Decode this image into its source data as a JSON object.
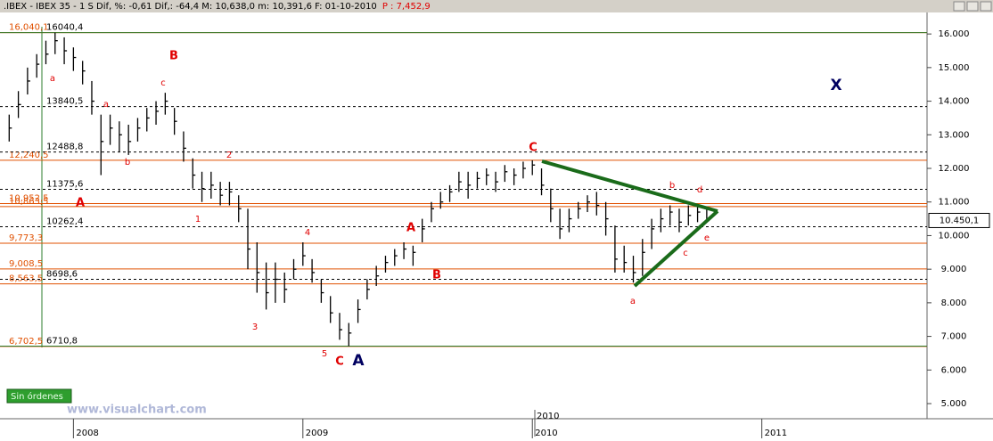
{
  "chart_data": {
    "type": "ohlc",
    "title": ".IBEX - IBEX 35 - 1 S Dif, %: -0,61 Dif,: -64,4 M: 10,638,0 m: 10,391,6 F: 01-10-2010",
    "title_price": "P : 7,452,9",
    "xlim": [
      2007.68,
      2011.72
    ],
    "ylim": [
      4550,
      16640
    ],
    "xticks": [
      2008,
      2009,
      2010,
      2011
    ],
    "yticks": [
      {
        "value": 5000,
        "label": "5.000"
      },
      {
        "value": 6000,
        "label": "6.000"
      },
      {
        "value": 7000,
        "label": "7.000"
      },
      {
        "value": 8000,
        "label": "8.000"
      },
      {
        "value": 9000,
        "label": "9.000"
      },
      {
        "value": 10000,
        "label": "10.000"
      },
      {
        "value": 11000,
        "label": "11.000"
      },
      {
        "value": 12000,
        "label": "12.000"
      },
      {
        "value": 13000,
        "label": "13.000"
      },
      {
        "value": 14000,
        "label": "14.000"
      },
      {
        "value": 15000,
        "label": "15.000"
      },
      {
        "value": 16000,
        "label": "16.000"
      }
    ],
    "color": "#000000",
    "x": [
      2007.72,
      2007.76,
      2007.8,
      2007.84,
      2007.88,
      2007.92,
      2007.96,
      2008.0,
      2008.04,
      2008.08,
      2008.12,
      2008.16,
      2008.2,
      2008.24,
      2008.28,
      2008.32,
      2008.36,
      2008.4,
      2008.44,
      2008.48,
      2008.52,
      2008.56,
      2008.6,
      2008.64,
      2008.68,
      2008.72,
      2008.76,
      2008.8,
      2008.84,
      2008.88,
      2008.92,
      2008.96,
      2009.0,
      2009.04,
      2009.08,
      2009.12,
      2009.16,
      2009.2,
      2009.24,
      2009.28,
      2009.32,
      2009.36,
      2009.4,
      2009.44,
      2009.48,
      2009.52,
      2009.56,
      2009.6,
      2009.64,
      2009.68,
      2009.72,
      2009.76,
      2009.8,
      2009.84,
      2009.88,
      2009.92,
      2009.96,
      2010.0,
      2010.04,
      2010.08,
      2010.12,
      2010.16,
      2010.2,
      2010.24,
      2010.28,
      2010.32,
      2010.36,
      2010.4,
      2010.44,
      2010.48,
      2010.52,
      2010.56,
      2010.6,
      2010.64,
      2010.68,
      2010.72,
      2010.76
    ],
    "high": [
      13600,
      14300,
      15000,
      15400,
      15800,
      16040,
      15900,
      15600,
      15200,
      14600,
      13600,
      13600,
      13400,
      13300,
      13500,
      13800,
      14000,
      14250,
      13800,
      13100,
      12300,
      11900,
      11900,
      11600,
      11600,
      11200,
      10800,
      9800,
      9200,
      9200,
      8900,
      9300,
      9800,
      9300,
      8700,
      8200,
      7700,
      7400,
      8100,
      8700,
      9100,
      9400,
      9600,
      9800,
      9700,
      10500,
      11000,
      11300,
      11500,
      11900,
      11900,
      11900,
      12000,
      11900,
      12100,
      12000,
      12200,
      12240,
      12000,
      11400,
      10800,
      10800,
      11000,
      11200,
      11300,
      11000,
      10300,
      9700,
      9400,
      9900,
      10500,
      10800,
      10900,
      10800,
      10900,
      10900,
      10800
    ],
    "low": [
      12800,
      13500,
      14200,
      14700,
      15100,
      15400,
      15100,
      14900,
      14500,
      13600,
      11800,
      12700,
      12500,
      12400,
      12800,
      13100,
      13300,
      13600,
      13000,
      12200,
      11400,
      11000,
      11100,
      10900,
      10900,
      10400,
      9000,
      8300,
      7800,
      8000,
      8000,
      8700,
      9100,
      8600,
      8000,
      7400,
      6900,
      6710,
      7400,
      8100,
      8500,
      8900,
      9100,
      9300,
      9100,
      9800,
      10400,
      10800,
      11000,
      11300,
      11100,
      11400,
      11500,
      11300,
      11600,
      11500,
      11700,
      11800,
      11200,
      10400,
      9900,
      10100,
      10500,
      10700,
      10600,
      10000,
      8900,
      8900,
      8600,
      8800,
      9600,
      10100,
      10300,
      10100,
      10300,
      10400,
      10390
    ],
    "close": [
      13200,
      13900,
      14600,
      15100,
      15400,
      15800,
      15500,
      15300,
      14900,
      14000,
      12800,
      13200,
      13000,
      12800,
      13200,
      13500,
      13700,
      14000,
      13400,
      12600,
      11800,
      11400,
      11500,
      11200,
      11300,
      10800,
      9600,
      8900,
      8300,
      8700,
      8400,
      9000,
      9400,
      8900,
      8300,
      7700,
      7200,
      7100,
      7800,
      8400,
      8800,
      9200,
      9400,
      9600,
      9500,
      10200,
      10800,
      11000,
      11300,
      11600,
      11500,
      11700,
      11800,
      11600,
      11900,
      11800,
      12000,
      12100,
      11500,
      10800,
      10200,
      10500,
      10800,
      11000,
      10900,
      10500,
      9300,
      9200,
      8900,
      9500,
      10200,
      10500,
      10700,
      10400,
      10600,
      10700,
      10450
    ],
    "levels": [
      {
        "value": 16040.1,
        "label": "16,040,1",
        "color": "#e05000",
        "style": "solid"
      },
      {
        "value": 12240.5,
        "label": "12,240,5",
        "color": "#e05000",
        "style": "solid"
      },
      {
        "value": 10952.5,
        "label": "10,952,5",
        "color": "#e05000",
        "style": "solid"
      },
      {
        "value": 10863.5,
        "label": "10,863,5",
        "color": "#e05000",
        "style": "solid"
      },
      {
        "value": 9773.3,
        "label": "9,773,3",
        "color": "#e05000",
        "style": "solid"
      },
      {
        "value": 9008.5,
        "label": "9,008,5",
        "color": "#e05000",
        "style": "solid"
      },
      {
        "value": 8563.5,
        "label": "8,563,5",
        "color": "#e05000",
        "style": "solid"
      },
      {
        "value": 6702.5,
        "label": "6,702,5",
        "color": "#e05000",
        "style": "solid"
      },
      {
        "value": 16040.4,
        "label": "16040,4",
        "color": "#2e7d2e",
        "style": "green"
      },
      {
        "value": 13840.5,
        "label": "13840,5",
        "color": "#000000",
        "style": "dashed"
      },
      {
        "value": 12488.8,
        "label": "12488,8",
        "color": "#000000",
        "style": "dashed"
      },
      {
        "value": 11375.6,
        "label": "11375,6",
        "color": "#000000",
        "style": "dashed"
      },
      {
        "value": 10262.4,
        "label": "10262,4",
        "color": "#000000",
        "style": "dashed"
      },
      {
        "value": 8698.6,
        "label": "8698,6",
        "color": "#000000",
        "style": "dashed"
      },
      {
        "value": 6710.8,
        "label": "6710,8",
        "color": "#2e7d2e",
        "style": "green"
      }
    ],
    "last_price": {
      "value": 10450.1,
      "label": "10.450,1"
    },
    "cursor_label": "2010",
    "annotations": [
      "a",
      "B",
      "c",
      "a",
      "b",
      "2",
      "1",
      "A",
      "4",
      "3",
      "5",
      "C",
      "A",
      "A",
      "B",
      "C",
      "b",
      "d",
      "e",
      "c",
      "a",
      "X"
    ],
    "button": "Sin órdenes",
    "watermark": "www.visualchart.com"
  }
}
